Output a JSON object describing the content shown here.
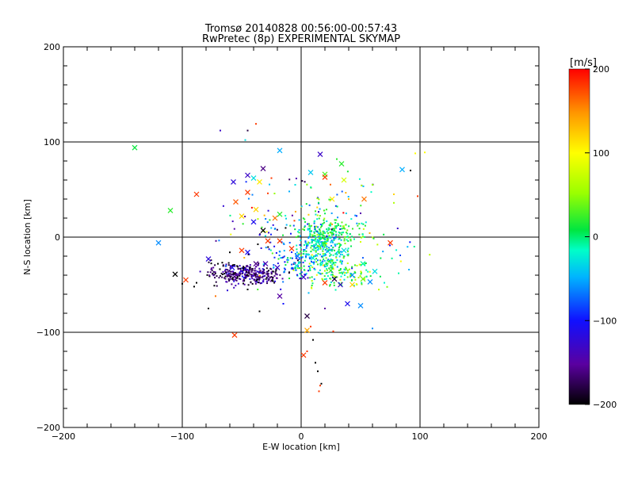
{
  "chart_data": {
    "type": "scatter",
    "title": "Tromsø 20140828 00:56:00-00:57:43",
    "subtitle": "RwPretec (8p) EXPERIMENTAL SKYMAP",
    "xlabel": "E-W location [km]",
    "ylabel": "N-S location [km]",
    "xlim": [
      -200,
      200
    ],
    "ylim": [
      -200,
      200
    ],
    "xticks": [
      -200,
      -100,
      0,
      100,
      200
    ],
    "yticks": [
      -200,
      -100,
      0,
      100,
      200
    ],
    "grid": true,
    "colorbar": {
      "label": "[m/s]",
      "min": -200,
      "max": 200,
      "ticks": [
        -200,
        -100,
        0,
        100,
        200
      ]
    },
    "crosses": [
      {
        "x": -140,
        "y": 94,
        "v": 10
      },
      {
        "x": -110,
        "y": 28,
        "v": 20
      },
      {
        "x": -120,
        "y": -6,
        "v": -60
      },
      {
        "x": -106,
        "y": -39,
        "v": -200
      },
      {
        "x": -97,
        "y": -45,
        "v": 180
      },
      {
        "x": -78,
        "y": -23,
        "v": -120
      },
      {
        "x": -56,
        "y": -103,
        "v": 180
      },
      {
        "x": -88,
        "y": 45,
        "v": 180
      },
      {
        "x": -57,
        "y": 58,
        "v": -120
      },
      {
        "x": -45,
        "y": 65,
        "v": -130
      },
      {
        "x": -40,
        "y": 62,
        "v": -30
      },
      {
        "x": -35,
        "y": 58,
        "v": 110
      },
      {
        "x": -45,
        "y": 47,
        "v": 180
      },
      {
        "x": -55,
        "y": 37,
        "v": 170
      },
      {
        "x": -32,
        "y": 72,
        "v": -160
      },
      {
        "x": -18,
        "y": 91,
        "v": -50
      },
      {
        "x": 16,
        "y": 87,
        "v": -130
      },
      {
        "x": 8,
        "y": 68,
        "v": -40
      },
      {
        "x": 20,
        "y": 66,
        "v": 30
      },
      {
        "x": 20,
        "y": 63,
        "v": 180
      },
      {
        "x": 34,
        "y": 77,
        "v": 20
      },
      {
        "x": 36,
        "y": 60,
        "v": 80
      },
      {
        "x": 26,
        "y": 40,
        "v": 110
      },
      {
        "x": 53,
        "y": 40,
        "v": 160
      },
      {
        "x": 85,
        "y": 71,
        "v": -50
      },
      {
        "x": -50,
        "y": 22,
        "v": 120
      },
      {
        "x": -38,
        "y": 29,
        "v": 120
      },
      {
        "x": -40,
        "y": 16,
        "v": -110
      },
      {
        "x": -32,
        "y": 7,
        "v": -200
      },
      {
        "x": -22,
        "y": 20,
        "v": 160
      },
      {
        "x": -18,
        "y": 24,
        "v": 20
      },
      {
        "x": -18,
        "y": -4,
        "v": 180
      },
      {
        "x": -28,
        "y": -4,
        "v": 180
      },
      {
        "x": -45,
        "y": -16,
        "v": -110
      },
      {
        "x": -50,
        "y": -14,
        "v": 180
      },
      {
        "x": -58,
        "y": -32,
        "v": -110
      },
      {
        "x": -30,
        "y": -28,
        "v": -140
      },
      {
        "x": -38,
        "y": -28,
        "v": -160
      },
      {
        "x": -20,
        "y": -32,
        "v": -130
      },
      {
        "x": -8,
        "y": -12,
        "v": 180
      },
      {
        "x": -3,
        "y": -20,
        "v": -70
      },
      {
        "x": -4,
        "y": -30,
        "v": -20
      },
      {
        "x": 2,
        "y": -42,
        "v": -130
      },
      {
        "x": -18,
        "y": -62,
        "v": -150
      },
      {
        "x": 5,
        "y": -83,
        "v": -180
      },
      {
        "x": 5,
        "y": -98,
        "v": 140
      },
      {
        "x": 2,
        "y": -124,
        "v": 180
      },
      {
        "x": 25,
        "y": -35,
        "v": 20
      },
      {
        "x": 20,
        "y": -48,
        "v": 180
      },
      {
        "x": 28,
        "y": -44,
        "v": -180
      },
      {
        "x": 33,
        "y": -50,
        "v": -130
      },
      {
        "x": 43,
        "y": -40,
        "v": -60
      },
      {
        "x": 43,
        "y": -50,
        "v": 120
      },
      {
        "x": 52,
        "y": -44,
        "v": 40
      },
      {
        "x": 58,
        "y": -47,
        "v": -60
      },
      {
        "x": 39,
        "y": -70,
        "v": -110
      },
      {
        "x": 50,
        "y": -72,
        "v": -60
      },
      {
        "x": 62,
        "y": -36,
        "v": -30
      },
      {
        "x": 75,
        "y": -6,
        "v": 180
      },
      {
        "x": 52,
        "y": -28,
        "v": -10
      },
      {
        "x": 36,
        "y": -14,
        "v": -30
      },
      {
        "x": 10,
        "y": -22,
        "v": -20
      }
    ]
  }
}
